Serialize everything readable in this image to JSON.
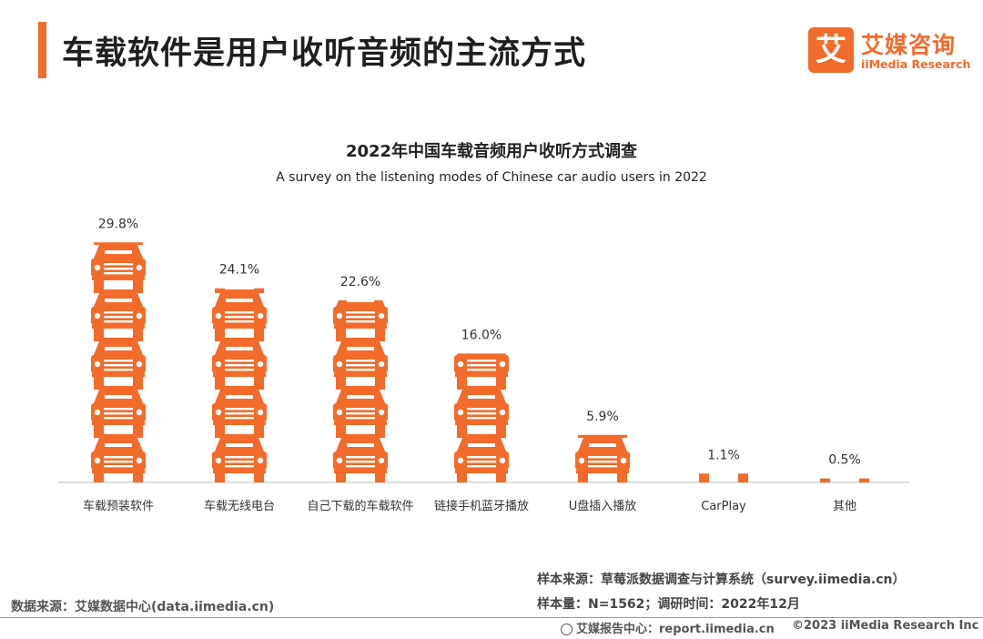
{
  "header": {
    "title": "车载软件是用户收听音频的主流方式"
  },
  "logo": {
    "mark": "艾",
    "name_cn": "艾媒咨询",
    "name_en": "iiMedia Research"
  },
  "chart_data": {
    "type": "bar",
    "title": "2022年中国车载音频用户收听方式调查",
    "subtitle": "A survey on the listening modes of Chinese car audio users in 2022",
    "categories": [
      "车载预装软件",
      "车载无线电台",
      "自己下载的车载软件",
      "链接手机蓝牙播放",
      "U盘插入播放",
      "CarPlay",
      "其他"
    ],
    "values": [
      29.8,
      24.1,
      22.6,
      16.0,
      5.9,
      1.1,
      0.5
    ],
    "value_labels": [
      "29.8%",
      "24.1%",
      "22.6%",
      "16.0%",
      "5.9%",
      "1.1%",
      "0.5%"
    ],
    "unit": "%",
    "bar_style": "stacked car pictograms",
    "color": "#f26b2a",
    "grid": false
  },
  "footer": {
    "sample_source": "样本来源：草莓派数据调查与计算系统（survey.iimedia.cn）",
    "sample_size": "样本量：N=1562；调研时间：2022年12月",
    "data_source": "数据来源：艾媒数据中心(data.iimedia.cn)",
    "report_center": "艾媒报告中心：report.iimedia.cn",
    "copyright": "©2023  iiMedia Research  Inc"
  },
  "colors": {
    "accent": "#f26b2a",
    "axis": "#bbbbbb"
  }
}
